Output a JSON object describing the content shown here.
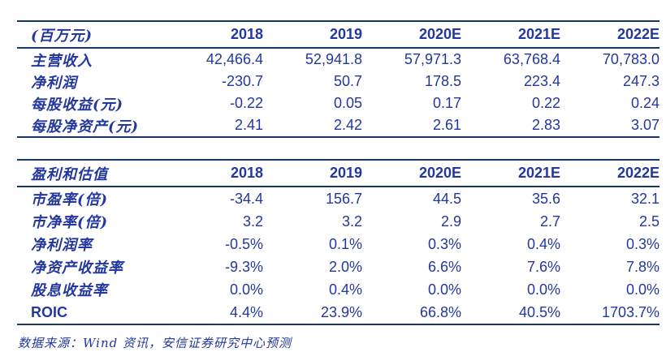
{
  "colors": {
    "navy_text": "#23379F",
    "rule_navy": "#1B3768",
    "background": "#FFFFFF"
  },
  "table1": {
    "unit_label": "(百万元)",
    "columns": [
      "2018",
      "2019",
      "2020E",
      "2021E",
      "2022E"
    ],
    "rows": [
      {
        "label": "主营收入",
        "values": [
          "42,466.4",
          "52,941.8",
          "57,971.3",
          "63,768.4",
          "70,783.0"
        ]
      },
      {
        "label": "净利润",
        "values": [
          "-230.7",
          "50.7",
          "178.5",
          "223.4",
          "247.3"
        ]
      },
      {
        "label": "每股收益(元)",
        "values": [
          "-0.22",
          "0.05",
          "0.17",
          "0.22",
          "0.24"
        ]
      },
      {
        "label": "每股净资产(元)",
        "values": [
          "2.41",
          "2.42",
          "2.61",
          "2.83",
          "3.07"
        ]
      }
    ]
  },
  "table2": {
    "title": "盈利和估值",
    "columns": [
      "2018",
      "2019",
      "2020E",
      "2021E",
      "2022E"
    ],
    "rows": [
      {
        "label": "市盈率(倍)",
        "values": [
          "-34.4",
          "156.7",
          "44.5",
          "35.6",
          "32.1"
        ]
      },
      {
        "label": "市净率(倍)",
        "values": [
          "3.2",
          "3.2",
          "2.9",
          "2.7",
          "2.5"
        ]
      },
      {
        "label": "净利润率",
        "values": [
          "-0.5%",
          "0.1%",
          "0.3%",
          "0.4%",
          "0.3%"
        ]
      },
      {
        "label": "净资产收益率",
        "values": [
          "-9.3%",
          "2.0%",
          "6.6%",
          "7.6%",
          "7.8%"
        ]
      },
      {
        "label": "股息收益率",
        "values": [
          "0.0%",
          "0.4%",
          "0.0%",
          "0.0%",
          "0.0%"
        ]
      },
      {
        "label": "ROIC",
        "values": [
          "4.4%",
          "23.9%",
          "66.8%",
          "40.5%",
          "1703.7%"
        ]
      }
    ]
  },
  "footer": {
    "source": "数据来源：Wind 资讯，安信证券研究中心预测"
  }
}
